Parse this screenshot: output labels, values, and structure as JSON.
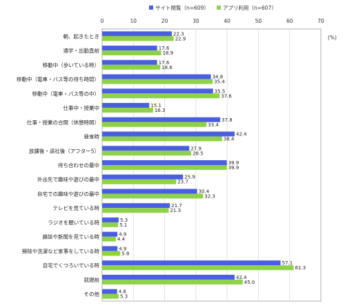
{
  "chart_data": {
    "type": "bar",
    "orientation": "horizontal",
    "unit_label": "(%)",
    "xlim": [
      0,
      70
    ],
    "xticks": [
      0,
      10,
      20,
      30,
      40,
      50,
      60,
      70
    ],
    "grid": true,
    "legend_position": "top-right",
    "colors": [
      "#4a5fe0",
      "#8fd14a"
    ],
    "categories": [
      "朝、起きたとき",
      "通学・出勤直前",
      "移動中（歩いている時）",
      "移動中（電車・バス等の待ち時間）",
      "移動中（電車・バス等の中）",
      "仕事中・授業中",
      "仕事・授業の合間（休憩時間）",
      "昼食時",
      "放課後・退社後（アフター5）",
      "待ち合わせの最中",
      "外出先で趣味や遊びの最中",
      "自宅での趣味や遊びの最中",
      "テレビを見ている時",
      "ラジオを聴いている時",
      "雑誌や新聞を見ている時",
      "掃除や洗濯など家事をしている時",
      "自宅でくつろいでいる時",
      "就寝前",
      "その他"
    ],
    "series": [
      {
        "name": "サイト閲覧（n=609）",
        "values": [
          22.3,
          17.6,
          17.6,
          34.8,
          35.5,
          15.1,
          37.8,
          42.4,
          27.9,
          39.9,
          25.9,
          30.4,
          21.7,
          5.3,
          4.9,
          4.9,
          57.1,
          42.4,
          4.8
        ],
        "labels": [
          "22.3",
          "17.6",
          "17.6",
          "34.8",
          "35.5",
          "15.1",
          "37.8",
          "42.4",
          "27.9",
          "39.9",
          "25.9",
          "30.4",
          "21.7",
          "5.3",
          "4.9",
          "4.9",
          "57.1",
          "42.4",
          "4.8"
        ]
      },
      {
        "name": "アプリ利用（n=607）",
        "values": [
          22.9,
          18.9,
          18.6,
          35.4,
          37.6,
          16.3,
          33.4,
          38.4,
          28.5,
          39.9,
          23.7,
          32.3,
          21.3,
          5.1,
          4.4,
          5.8,
          61.3,
          45.0,
          5.3
        ],
        "labels": [
          "22.9",
          "18.9",
          "18.6",
          "35.4",
          "37.6",
          "16.3",
          "33.4",
          "38.4",
          "28.5",
          "39.9",
          "23.7",
          "32.3",
          "21.3",
          "5.1",
          "4.4",
          "5.8",
          "61.3",
          "45.0",
          "5.3"
        ]
      }
    ]
  }
}
